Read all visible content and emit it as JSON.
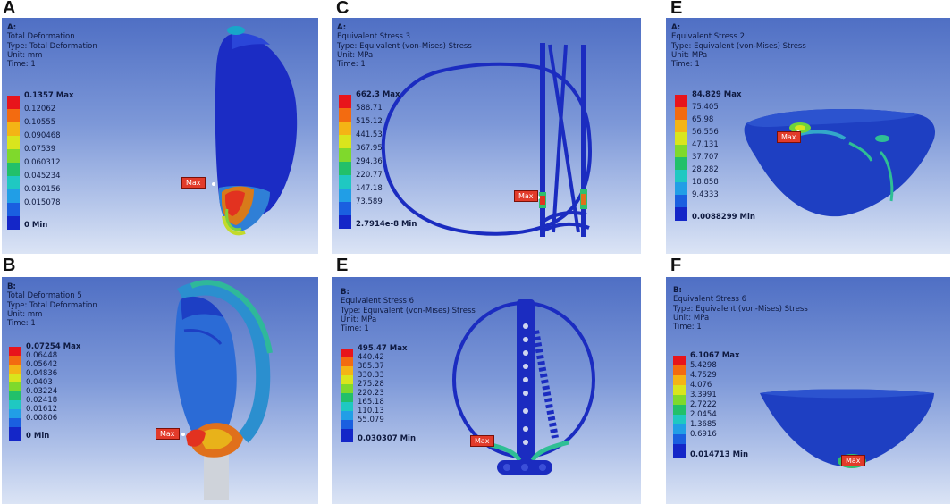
{
  "panels": [
    {
      "letter": "A",
      "info": [
        "A:",
        "Total Deformation",
        "Type: Total Deformation",
        "Unit: mm",
        "Time: 1"
      ],
      "legend": [
        "0.1357 Max",
        "0.12062",
        "0.10555",
        "0.090468",
        "0.07539",
        "0.060312",
        "0.045234",
        "0.030156",
        "0.015078"
      ],
      "legend_min": "0 Min",
      "max_tag": "Max"
    },
    {
      "letter": "C",
      "info": [
        "A:",
        "Equivalent Stress 3",
        "Type: Equivalent (von-Mises) Stress",
        "Unit: MPa",
        "Time: 1"
      ],
      "legend": [
        "662.3 Max",
        "588.71",
        "515.12",
        "441.53",
        "367.95",
        "294.36",
        "220.77",
        "147.18",
        "73.589"
      ],
      "legend_min": "2.7914e-8 Min",
      "max_tag": "Max"
    },
    {
      "letter": "E",
      "info": [
        "A:",
        "Equivalent Stress 2",
        "Type: Equivalent (von-Mises) Stress",
        "Unit: MPa",
        "Time: 1"
      ],
      "legend": [
        "84.829 Max",
        "75.405",
        "65.98",
        "56.556",
        "47.131",
        "37.707",
        "28.282",
        "18.858",
        "9.4333"
      ],
      "legend_min": "0.0088299 Min",
      "max_tag": "Max"
    },
    {
      "letter": "B",
      "info": [
        "B:",
        "Total Deformation 5",
        "Type: Total Deformation",
        "Unit: mm",
        "Time: 1"
      ],
      "legend": [
        "0.07254 Max",
        "0.06448",
        "0.05642",
        "0.04836",
        "0.0403",
        "0.03224",
        "0.02418",
        "0.01612",
        "0.00806"
      ],
      "legend_min": "0 Min",
      "max_tag": "Max"
    },
    {
      "letter": "E",
      "info": [
        "B:",
        "Equivalent Stress 6",
        "Type: Equivalent (von-Mises) Stress",
        "Unit: MPa",
        "Time: 1"
      ],
      "legend": [
        "495.47 Max",
        "440.42",
        "385.37",
        "330.33",
        "275.28",
        "220.23",
        "165.18",
        "110.13",
        "55.079"
      ],
      "legend_min": "0.030307 Min",
      "max_tag": "Max"
    },
    {
      "letter": "F",
      "info": [
        "B:",
        "Equivalent Stress 6",
        "Type: Equivalent (von-Mises) Stress",
        "Unit: MPa",
        "Time: 1"
      ],
      "legend": [
        "6.1067 Max",
        "5.4298",
        "4.7529",
        "4.076",
        "3.3991",
        "2.7222",
        "2.0454",
        "1.3685",
        "0.6916"
      ],
      "legend_min": "0.014713 Min",
      "max_tag": "Max"
    }
  ],
  "legend_colors": [
    "#e8141b",
    "#f36b10",
    "#f4b415",
    "#d9e51d",
    "#7fd92c",
    "#22c06a",
    "#1fc8c2",
    "#219ee6",
    "#1a5fe0",
    "#1426c8"
  ]
}
